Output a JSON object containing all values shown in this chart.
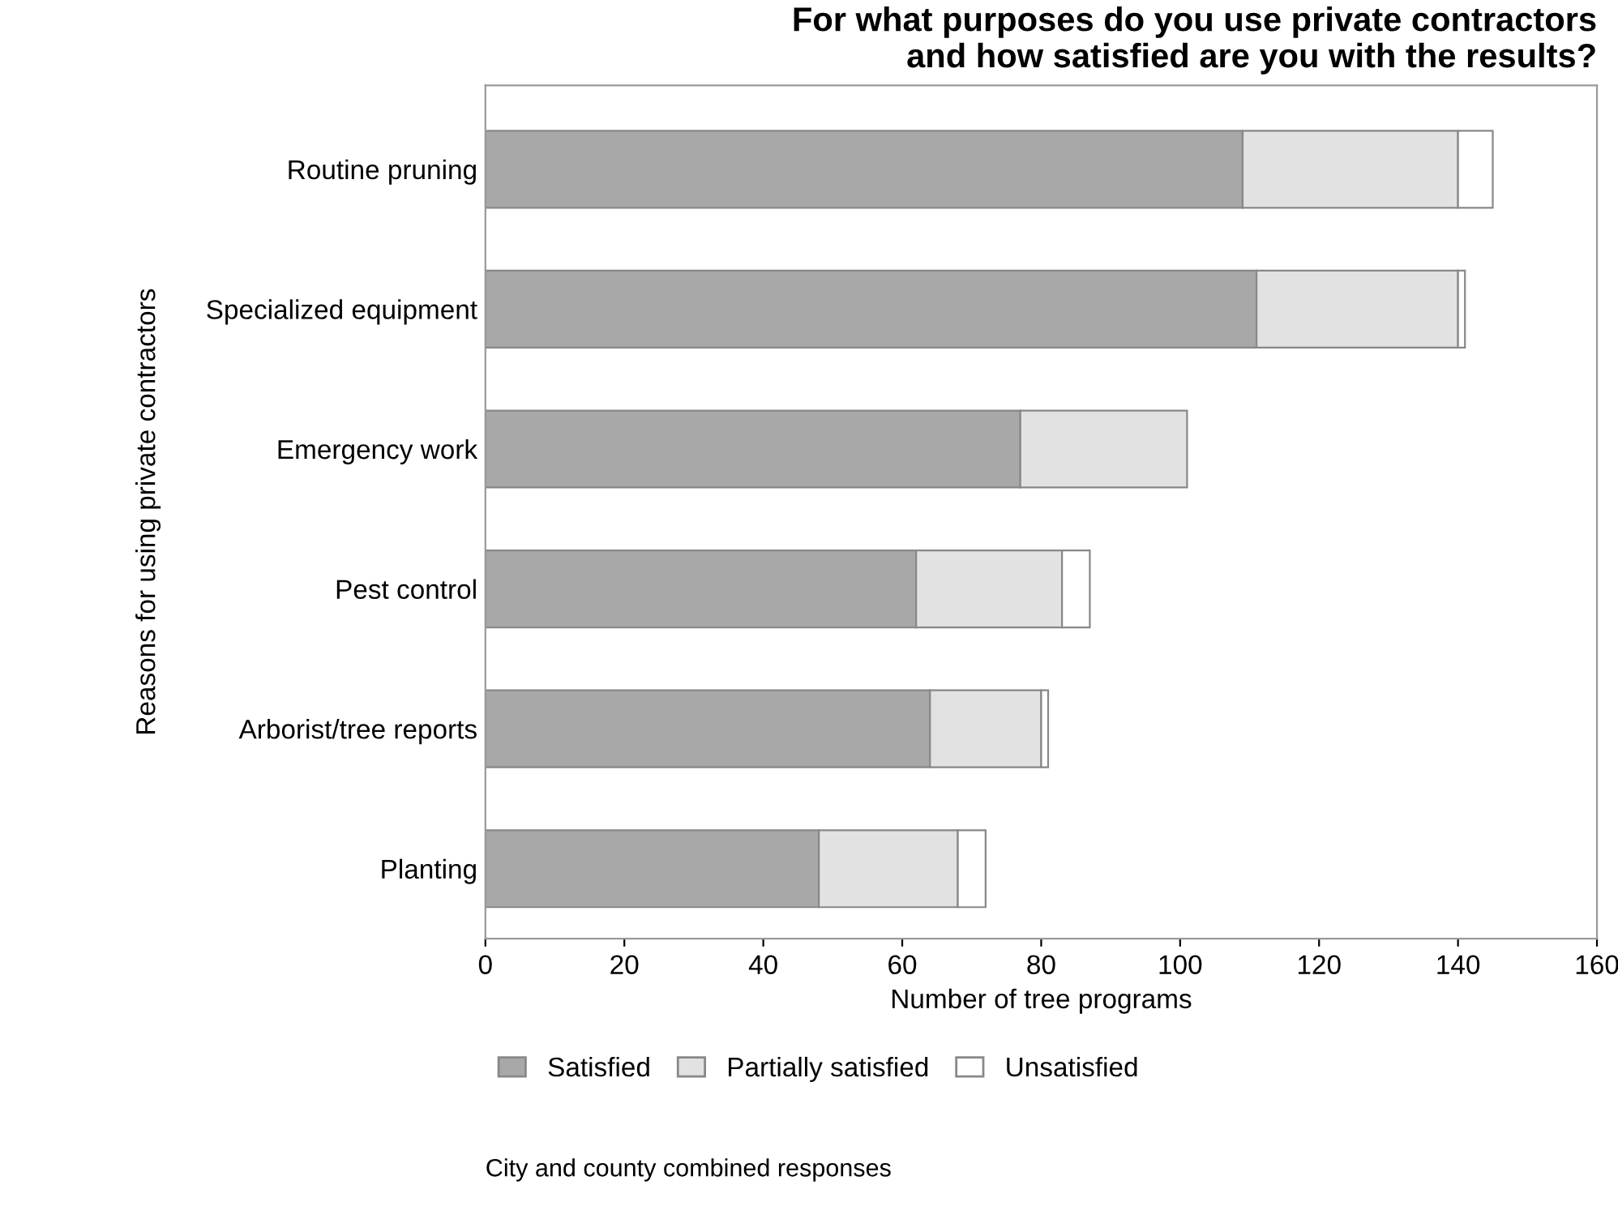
{
  "chart_data": {
    "type": "bar",
    "orientation": "horizontal",
    "stacked": true,
    "title": "For what purposes do you use private contractors\nand how satisfied are you with the results?",
    "xlabel": "Number of tree programs",
    "ylabel": "Reasons for using private contractors",
    "categories": [
      "Routine pruning",
      "Specialized equipment",
      "Emergency work",
      "Pest control",
      "Arborist/tree reports",
      "Planting"
    ],
    "series": [
      {
        "name": "Satisfied",
        "color": "#a8a8a8",
        "values": [
          109,
          111,
          77,
          62,
          64,
          48
        ]
      },
      {
        "name": "Partially satisfied",
        "color": "#e2e2e2",
        "values": [
          31,
          29,
          24,
          21,
          16,
          20
        ]
      },
      {
        "name": "Unsatisfied",
        "color": "#ffffff",
        "values": [
          5,
          1,
          null,
          4,
          1,
          4
        ]
      }
    ],
    "xlim": [
      0,
      160
    ],
    "xticks": [
      0,
      20,
      40,
      60,
      80,
      100,
      120,
      140,
      160
    ],
    "legend": "bottom",
    "annotations": [
      "City and county combined responses"
    ]
  }
}
